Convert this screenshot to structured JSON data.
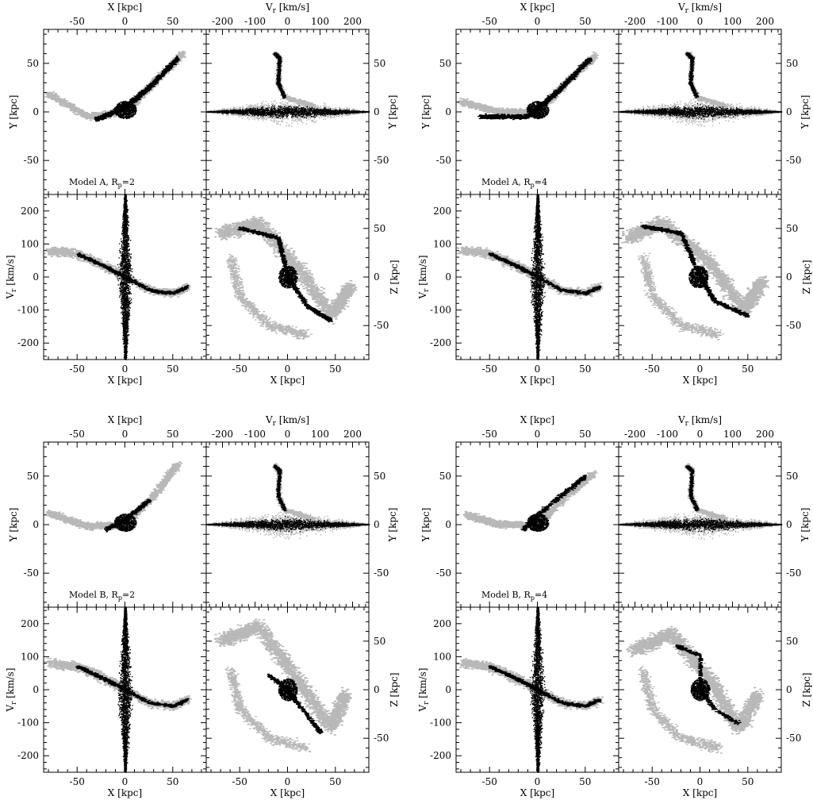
{
  "figure": {
    "colors": {
      "simulation": "#b8b8b8",
      "observed": "#000000",
      "axes": "#000000"
    },
    "panels": [
      {
        "name": "model-a-rp2",
        "label": "Model A, R",
        "label_sub": "p",
        "label_tail": "=2",
        "axes": {
          "xy_top_xlabel": "X [kpc]",
          "xy_ylabel": "Y [kpc]",
          "vz_top_xlabel_main": "V",
          "vz_top_xlabel_sub": "r",
          "vz_top_xlabel_tail": " [km/s]",
          "zy_ylabel": "Y [kpc]",
          "xv_ylabel_main": "V",
          "xv_ylabel_sub": "r",
          "xv_ylabel_tail": " [km/s]",
          "xv_xlabel": "X [kpc]",
          "xz_xlabel": "X [kpc]",
          "xz_ylabel": "Z [kpc]"
        }
      },
      {
        "name": "model-a-rp4",
        "label": "Model A, R",
        "label_sub": "p",
        "label_tail": "=4",
        "axes": {
          "xy_top_xlabel": "X [kpc]",
          "xy_ylabel": "Y [kpc]",
          "vz_top_xlabel_main": "V",
          "vz_top_xlabel_sub": "r",
          "vz_top_xlabel_tail": " [km/s]",
          "zy_ylabel": "Y [kpc]",
          "xv_ylabel_main": "V",
          "xv_ylabel_sub": "r",
          "xv_ylabel_tail": " [km/s]",
          "xv_xlabel": "X [kpc]",
          "xz_xlabel": "X [kpc]",
          "xz_ylabel": "Z [kpc]"
        }
      },
      {
        "name": "model-b-rp2",
        "label": "Model B, R",
        "label_sub": "p",
        "label_tail": "=2",
        "axes": {
          "xy_top_xlabel": "X [kpc]",
          "xy_ylabel": "Y [kpc]",
          "vz_top_xlabel_main": "V",
          "vz_top_xlabel_sub": "r",
          "vz_top_xlabel_tail": " [km/s]",
          "zy_ylabel": "Y [kpc]",
          "xv_ylabel_main": "V",
          "xv_ylabel_sub": "r",
          "xv_ylabel_tail": " [km/s]",
          "xv_xlabel": "X [kpc]",
          "xz_xlabel": "X [kpc]",
          "xz_ylabel": "Z [kpc]"
        }
      },
      {
        "name": "model-b-rp4",
        "label": "Model B, R",
        "label_sub": "p",
        "label_tail": "=4",
        "axes": {
          "xy_top_xlabel": "X [kpc]",
          "xy_ylabel": "Y [kpc]",
          "vz_top_xlabel_main": "V",
          "vz_top_xlabel_sub": "r",
          "vz_top_xlabel_tail": " [km/s]",
          "zy_ylabel": "Y [kpc]",
          "xv_ylabel_main": "V",
          "xv_ylabel_sub": "r",
          "xv_ylabel_tail": " [km/s]",
          "xv_xlabel": "X [kpc]",
          "xz_xlabel": "X [kpc]",
          "xz_ylabel": "Z [kpc]"
        }
      }
    ]
  },
  "chart_data": [
    {
      "type": "scatter",
      "model": "Model A, Rp=2",
      "subplots": [
        {
          "id": "xy",
          "xlabel": "X [kpc]",
          "ylabel": "Y [kpc]",
          "xlim": [
            -85,
            85
          ],
          "ylim": [
            -85,
            85
          ],
          "xticks": [
            -50,
            0,
            50
          ],
          "yticks": [
            -50,
            0,
            50
          ]
        },
        {
          "id": "vy",
          "xlabel": "Vr [km/s]",
          "ylabel": "Y [kpc]",
          "xlim": [
            -250,
            250
          ],
          "ylim": [
            -85,
            85
          ],
          "xticks": [
            -200,
            -100,
            0,
            100,
            200
          ],
          "yticks": [
            -50,
            0,
            50
          ]
        },
        {
          "id": "xv",
          "xlabel": "X [kpc]",
          "ylabel": "Vr [km/s]",
          "xlim": [
            -85,
            85
          ],
          "ylim": [
            -250,
            250
          ],
          "xticks": [
            -50,
            0,
            50
          ],
          "yticks": [
            -200,
            -100,
            0,
            100,
            200
          ]
        },
        {
          "id": "xz",
          "xlabel": "X [kpc]",
          "ylabel": "Z [kpc]",
          "xlim": [
            -85,
            85
          ],
          "ylim": [
            -85,
            85
          ],
          "xticks": [
            -50,
            0,
            50
          ],
          "yticks": [
            -50,
            0,
            50
          ]
        }
      ],
      "series": [
        {
          "color": "#b8b8b8",
          "xy_arm": [
            [
              -80,
              18
            ],
            [
              -40,
              -5
            ],
            [
              0,
              0
            ],
            [
              30,
              30
            ],
            [
              60,
              60
            ]
          ],
          "xz_arm": [
            [
              -70,
              45
            ],
            [
              -30,
              55
            ],
            [
              10,
              10
            ],
            [
              45,
              -40
            ],
            [
              65,
              -10
            ]
          ]
        },
        {
          "color": "#000000",
          "xy_arm": [
            [
              -30,
              -8
            ],
            [
              0,
              5
            ],
            [
              25,
              25
            ],
            [
              55,
              55
            ]
          ],
          "xz_arm": [
            [
              -50,
              50
            ],
            [
              -10,
              40
            ],
            [
              0,
              0
            ],
            [
              20,
              -30
            ],
            [
              45,
              -45
            ]
          ]
        }
      ]
    },
    {
      "type": "scatter",
      "model": "Model A, Rp=4",
      "subplots": [
        {
          "id": "xy",
          "xlabel": "X [kpc]",
          "ylabel": "Y [kpc]",
          "xlim": [
            -85,
            85
          ],
          "ylim": [
            -85,
            85
          ],
          "xticks": [
            -50,
            0,
            50
          ],
          "yticks": [
            -50,
            0,
            50
          ]
        },
        {
          "id": "vy",
          "xlabel": "Vr [km/s]",
          "ylabel": "Y [kpc]",
          "xlim": [
            -250,
            250
          ],
          "ylim": [
            -85,
            85
          ],
          "xticks": [
            -200,
            -100,
            0,
            100,
            200
          ],
          "yticks": [
            -50,
            0,
            50
          ]
        },
        {
          "id": "xv",
          "xlabel": "X [kpc]",
          "ylabel": "Vr [km/s]",
          "xlim": [
            -85,
            85
          ],
          "ylim": [
            -250,
            250
          ],
          "xticks": [
            -50,
            0,
            50
          ],
          "yticks": [
            -200,
            -100,
            0,
            100,
            200
          ]
        },
        {
          "id": "xz",
          "xlabel": "X [kpc]",
          "ylabel": "Z [kpc]",
          "xlim": [
            -85,
            85
          ],
          "ylim": [
            -85,
            85
          ],
          "xticks": [
            -50,
            0,
            50
          ],
          "yticks": [
            -50,
            0,
            50
          ]
        }
      ],
      "series": [
        {
          "color": "#b8b8b8",
          "xy_arm": [
            [
              -80,
              10
            ],
            [
              -40,
              0
            ],
            [
              0,
              0
            ],
            [
              30,
              30
            ],
            [
              60,
              58
            ]
          ],
          "xz_arm": [
            [
              -75,
              40
            ],
            [
              -40,
              55
            ],
            [
              10,
              15
            ],
            [
              45,
              -35
            ],
            [
              65,
              -5
            ]
          ]
        },
        {
          "color": "#000000",
          "xy_arm": [
            [
              -60,
              -5
            ],
            [
              -10,
              -5
            ],
            [
              20,
              20
            ],
            [
              55,
              55
            ]
          ],
          "xz_arm": [
            [
              -60,
              52
            ],
            [
              -20,
              45
            ],
            [
              0,
              0
            ],
            [
              15,
              -25
            ],
            [
              50,
              -40
            ]
          ]
        }
      ]
    },
    {
      "type": "scatter",
      "model": "Model B, Rp=2",
      "subplots": [
        {
          "id": "xy",
          "xlabel": "X [kpc]",
          "ylabel": "Y [kpc]",
          "xlim": [
            -85,
            85
          ],
          "ylim": [
            -85,
            85
          ],
          "xticks": [
            -50,
            0,
            50
          ],
          "yticks": [
            -50,
            0,
            50
          ]
        },
        {
          "id": "vy",
          "xlabel": "Vr [km/s]",
          "ylabel": "Y [kpc]",
          "xlim": [
            -250,
            250
          ],
          "ylim": [
            -85,
            85
          ],
          "xticks": [
            -200,
            -100,
            0,
            100,
            200
          ],
          "yticks": [
            -50,
            0,
            50
          ]
        },
        {
          "id": "xv",
          "xlabel": "X [kpc]",
          "ylabel": "Vr [km/s]",
          "xlim": [
            -85,
            85
          ],
          "ylim": [
            -250,
            250
          ],
          "xticks": [
            -50,
            0,
            50
          ],
          "yticks": [
            -200,
            -100,
            0,
            100,
            200
          ]
        },
        {
          "id": "xz",
          "xlabel": "X [kpc]",
          "ylabel": "Z [kpc]",
          "xlim": [
            -85,
            85
          ],
          "ylim": [
            -85,
            85
          ],
          "xticks": [
            -50,
            0,
            50
          ],
          "yticks": [
            -50,
            0,
            50
          ]
        }
      ],
      "series": [
        {
          "color": "#b8b8b8",
          "xy_arm": [
            [
              -80,
              12
            ],
            [
              -40,
              -2
            ],
            [
              0,
              0
            ],
            [
              30,
              30
            ],
            [
              55,
              62
            ]
          ],
          "xz_arm": [
            [
              -70,
              50
            ],
            [
              -30,
              65
            ],
            [
              10,
              10
            ],
            [
              45,
              -40
            ],
            [
              60,
              -5
            ]
          ]
        },
        {
          "color": "#000000",
          "xy_arm": [
            [
              -20,
              -5
            ],
            [
              0,
              5
            ],
            [
              25,
              25
            ]
          ],
          "xz_arm": [
            [
              -20,
              15
            ],
            [
              0,
              0
            ],
            [
              15,
              -20
            ],
            [
              35,
              -45
            ]
          ]
        }
      ]
    },
    {
      "type": "scatter",
      "model": "Model B, Rp=4",
      "subplots": [
        {
          "id": "xy",
          "xlabel": "X [kpc]",
          "ylabel": "Y [kpc]",
          "xlim": [
            -85,
            85
          ],
          "ylim": [
            -85,
            85
          ],
          "xticks": [
            -50,
            0,
            50
          ],
          "yticks": [
            -50,
            0,
            50
          ]
        },
        {
          "id": "vy",
          "xlabel": "Vr [km/s]",
          "ylabel": "Y [kpc]",
          "xlim": [
            -250,
            250
          ],
          "ylim": [
            -85,
            85
          ],
          "xticks": [
            -200,
            -100,
            0,
            100,
            200
          ],
          "yticks": [
            -50,
            0,
            50
          ]
        },
        {
          "id": "xv",
          "xlabel": "X [kpc]",
          "ylabel": "Vr [km/s]",
          "xlim": [
            -85,
            85
          ],
          "ylim": [
            -250,
            250
          ],
          "xticks": [
            -50,
            0,
            50
          ],
          "yticks": [
            -200,
            -100,
            0,
            100,
            200
          ]
        },
        {
          "id": "xz",
          "xlabel": "X [kpc]",
          "ylabel": "Z [kpc]",
          "xlim": [
            -85,
            85
          ],
          "ylim": [
            -85,
            85
          ],
          "xticks": [
            -50,
            0,
            50
          ],
          "yticks": [
            -50,
            0,
            50
          ]
        }
      ],
      "series": [
        {
          "color": "#b8b8b8",
          "xy_arm": [
            [
              -75,
              10
            ],
            [
              -40,
              0
            ],
            [
              0,
              0
            ],
            [
              30,
              30
            ],
            [
              58,
              52
            ]
          ],
          "xz_arm": [
            [
              -70,
              40
            ],
            [
              -30,
              58
            ],
            [
              10,
              10
            ],
            [
              40,
              -40
            ],
            [
              60,
              -5
            ]
          ]
        },
        {
          "color": "#000000",
          "xy_arm": [
            [
              -15,
              -5
            ],
            [
              0,
              10
            ],
            [
              25,
              30
            ],
            [
              50,
              50
            ]
          ],
          "xz_arm": [
            [
              -25,
              45
            ],
            [
              0,
              35
            ],
            [
              0,
              0
            ],
            [
              15,
              -20
            ],
            [
              40,
              -35
            ]
          ]
        }
      ]
    }
  ]
}
